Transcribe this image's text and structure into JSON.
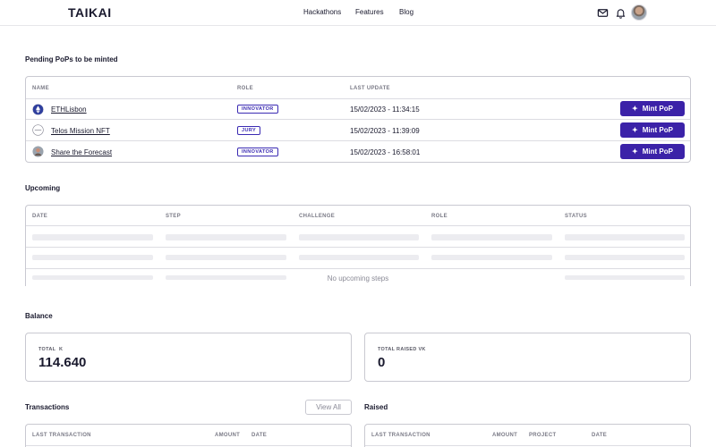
{
  "header": {
    "logo": "TAIKAI",
    "nav": [
      "Hackathons",
      "Features",
      "Blog"
    ]
  },
  "pending": {
    "title": "Pending PoPs to be minted",
    "columns": [
      "NAME",
      "ROLE",
      "LAST UPDATE"
    ],
    "rows": [
      {
        "name": "ETHLisbon",
        "role": "INNOVATOR",
        "date": "15/02/2023 - 11:34:15",
        "action": "Mint PoP"
      },
      {
        "name": "Telos Mission NFT",
        "role": "JURY",
        "date": "15/02/2023 - 11:39:09",
        "action": "Mint PoP"
      },
      {
        "name": "Share the Forecast",
        "role": "INNOVATOR",
        "date": "15/02/2023 - 16:58:01",
        "action": "Mint PoP"
      }
    ]
  },
  "upcoming": {
    "title": "Upcoming",
    "columns": [
      "DATE",
      "STEP",
      "CHALLENGE",
      "ROLE",
      "STATUS"
    ],
    "empty": "No upcoming steps"
  },
  "balance": {
    "title": "Balance",
    "total_label": "TOTAL",
    "total_symbol": "K",
    "total_value": "114.640",
    "raised_label": "TOTAL RAISED",
    "raised_symbol": "VK",
    "raised_value": "0"
  },
  "transactions": {
    "title": "Transactions",
    "view_all": "View All",
    "columns": [
      "LAST TRANSACTION",
      "AMOUNT",
      "DATE"
    ]
  },
  "raised": {
    "title": "Raised",
    "columns": [
      "LAST TRANSACTION",
      "AMOUNT",
      "PROJECT",
      "DATE"
    ]
  },
  "colors": {
    "accent": "#3b22a8",
    "badge": "#3b2bb3",
    "border": "#c9c9d1"
  }
}
